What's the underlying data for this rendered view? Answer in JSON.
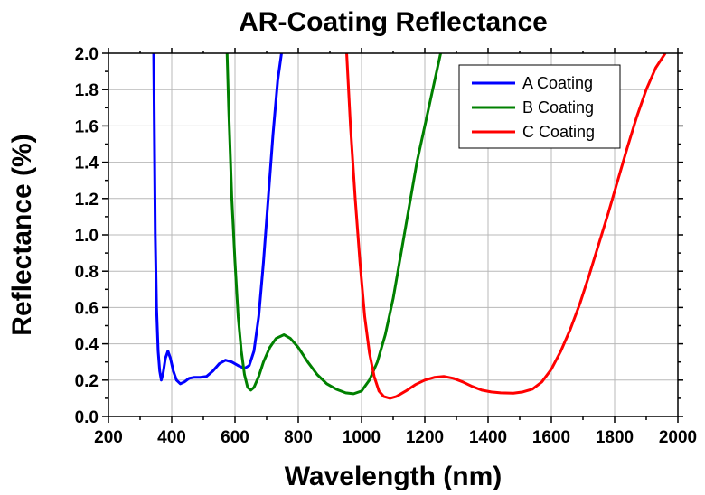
{
  "chart_data": {
    "type": "line",
    "title": "AR-Coating Reflectance",
    "xlabel": "Wavelength (nm)",
    "ylabel": "Reflectance (%)",
    "xlim": [
      200,
      2000
    ],
    "ylim": [
      0,
      2.0
    ],
    "x_ticks": [
      200,
      400,
      600,
      800,
      1000,
      1200,
      1400,
      1600,
      1800,
      2000
    ],
    "y_ticks": [
      0.0,
      0.2,
      0.4,
      0.6,
      0.8,
      1.0,
      1.2,
      1.4,
      1.6,
      1.8,
      2.0
    ],
    "x_tick_labels": [
      "200",
      "400",
      "600",
      "800",
      "1000",
      "1200",
      "1400",
      "1600",
      "1800",
      "2000"
    ],
    "y_tick_labels": [
      "0.0",
      "0.2",
      "0.4",
      "0.6",
      "0.8",
      "1.0",
      "1.2",
      "1.4",
      "1.6",
      "1.8",
      "2.0"
    ],
    "grid": true,
    "legend_position": "top-right",
    "series": [
      {
        "name": "A Coating",
        "color": "#0000ff",
        "points": [
          [
            343,
            2.0
          ],
          [
            345,
            1.6
          ],
          [
            348,
            1.0
          ],
          [
            352,
            0.6
          ],
          [
            357,
            0.36
          ],
          [
            362,
            0.25
          ],
          [
            367,
            0.2
          ],
          [
            373,
            0.24
          ],
          [
            380,
            0.32
          ],
          [
            388,
            0.36
          ],
          [
            396,
            0.32
          ],
          [
            405,
            0.25
          ],
          [
            415,
            0.2
          ],
          [
            427,
            0.18
          ],
          [
            440,
            0.19
          ],
          [
            455,
            0.21
          ],
          [
            470,
            0.215
          ],
          [
            490,
            0.215
          ],
          [
            510,
            0.22
          ],
          [
            530,
            0.25
          ],
          [
            550,
            0.29
          ],
          [
            570,
            0.31
          ],
          [
            590,
            0.3
          ],
          [
            610,
            0.28
          ],
          [
            630,
            0.265
          ],
          [
            645,
            0.28
          ],
          [
            660,
            0.36
          ],
          [
            675,
            0.55
          ],
          [
            690,
            0.85
          ],
          [
            705,
            1.2
          ],
          [
            720,
            1.55
          ],
          [
            735,
            1.85
          ],
          [
            747,
            2.0
          ]
        ]
      },
      {
        "name": "B Coating",
        "color": "#008000",
        "points": [
          [
            575,
            2.0
          ],
          [
            580,
            1.7
          ],
          [
            590,
            1.2
          ],
          [
            600,
            0.85
          ],
          [
            610,
            0.55
          ],
          [
            620,
            0.36
          ],
          [
            630,
            0.23
          ],
          [
            640,
            0.16
          ],
          [
            650,
            0.145
          ],
          [
            660,
            0.16
          ],
          [
            675,
            0.22
          ],
          [
            690,
            0.3
          ],
          [
            710,
            0.38
          ],
          [
            730,
            0.43
          ],
          [
            755,
            0.45
          ],
          [
            775,
            0.43
          ],
          [
            800,
            0.38
          ],
          [
            830,
            0.3
          ],
          [
            860,
            0.23
          ],
          [
            890,
            0.18
          ],
          [
            920,
            0.15
          ],
          [
            950,
            0.13
          ],
          [
            975,
            0.125
          ],
          [
            1000,
            0.14
          ],
          [
            1025,
            0.2
          ],
          [
            1050,
            0.3
          ],
          [
            1075,
            0.45
          ],
          [
            1100,
            0.65
          ],
          [
            1125,
            0.9
          ],
          [
            1150,
            1.15
          ],
          [
            1175,
            1.4
          ],
          [
            1200,
            1.6
          ],
          [
            1225,
            1.8
          ],
          [
            1250,
            2.0
          ]
        ]
      },
      {
        "name": "C Coating",
        "color": "#ff0000",
        "points": [
          [
            953,
            2.0
          ],
          [
            965,
            1.6
          ],
          [
            980,
            1.2
          ],
          [
            995,
            0.85
          ],
          [
            1010,
            0.55
          ],
          [
            1025,
            0.35
          ],
          [
            1040,
            0.22
          ],
          [
            1055,
            0.14
          ],
          [
            1070,
            0.11
          ],
          [
            1090,
            0.1
          ],
          [
            1110,
            0.11
          ],
          [
            1140,
            0.14
          ],
          [
            1170,
            0.175
          ],
          [
            1200,
            0.2
          ],
          [
            1230,
            0.215
          ],
          [
            1260,
            0.22
          ],
          [
            1290,
            0.21
          ],
          [
            1320,
            0.19
          ],
          [
            1350,
            0.165
          ],
          [
            1380,
            0.145
          ],
          [
            1410,
            0.135
          ],
          [
            1440,
            0.13
          ],
          [
            1480,
            0.128
          ],
          [
            1510,
            0.135
          ],
          [
            1540,
            0.15
          ],
          [
            1570,
            0.19
          ],
          [
            1600,
            0.26
          ],
          [
            1630,
            0.36
          ],
          [
            1660,
            0.48
          ],
          [
            1690,
            0.62
          ],
          [
            1720,
            0.78
          ],
          [
            1750,
            0.95
          ],
          [
            1780,
            1.12
          ],
          [
            1810,
            1.3
          ],
          [
            1840,
            1.48
          ],
          [
            1870,
            1.65
          ],
          [
            1900,
            1.8
          ],
          [
            1930,
            1.92
          ],
          [
            1960,
            2.0
          ]
        ]
      }
    ]
  }
}
